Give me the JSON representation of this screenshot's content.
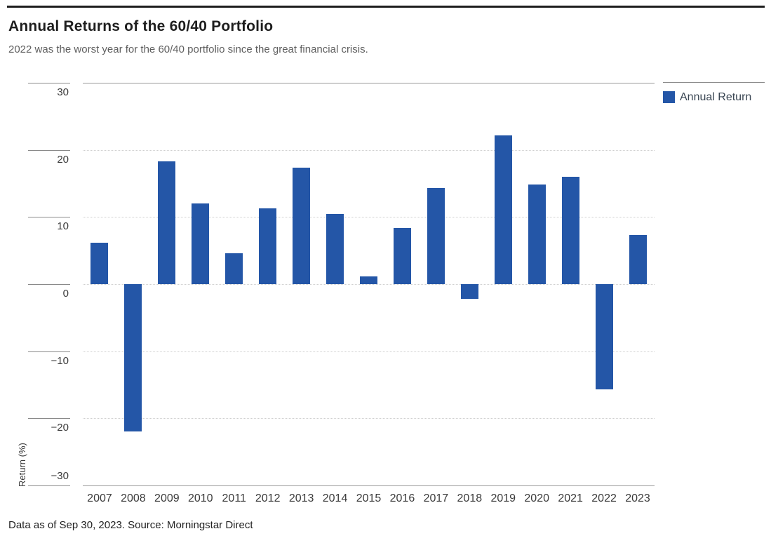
{
  "page": {
    "title": "Annual Returns of the 60/40 Portfolio",
    "subtitle": "2022 was the worst year for the 60/40 portfolio since the great financial crisis.",
    "footnote": "Data as of Sep 30, 2023. Source: Morningstar Direct"
  },
  "legend": {
    "label": "Annual Return",
    "swatch_color": "#2456a7"
  },
  "chart_data": {
    "type": "bar",
    "title": "Annual Returns of the 60/40 Portfolio",
    "subtitle": "2022 was the worst year for the 60/40 portfolio since the great financial crisis.",
    "series_name": "Annual Return",
    "categories": [
      "2007",
      "2008",
      "2009",
      "2010",
      "2011",
      "2012",
      "2013",
      "2014",
      "2015",
      "2016",
      "2017",
      "2018",
      "2019",
      "2020",
      "2021",
      "2022",
      "2023"
    ],
    "values": [
      6.2,
      -22.0,
      18.3,
      12.0,
      4.6,
      11.3,
      17.4,
      10.5,
      1.2,
      8.4,
      14.3,
      -2.2,
      22.2,
      14.8,
      16.0,
      -15.7,
      7.3
    ],
    "xlabel": "",
    "ylabel": "Return (%)",
    "ylim": [
      -30,
      30
    ],
    "yticks": [
      30,
      20,
      10,
      0,
      -10,
      -20,
      -30
    ],
    "ytick_labels": [
      "30",
      "20",
      "10",
      "0",
      "−10",
      "−20",
      "−30"
    ],
    "grid": "horizontal-dotted",
    "legend_position": "top-right",
    "bar_color": "#2456a7",
    "source_note": "Data as of Sep 30, 2023. Source: Morningstar Direct"
  }
}
